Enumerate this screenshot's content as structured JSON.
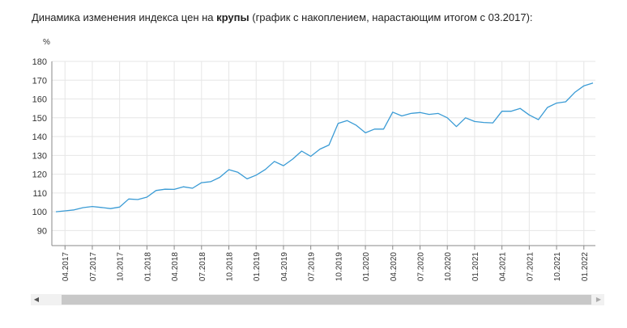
{
  "header": {
    "title_prefix": "Динамика изменения индекса цен на ",
    "title_bold": "крупы",
    "title_suffix": " (график с накоплением, нарастающим итогом с 03.2017):"
  },
  "scrollbar": {
    "left_arrow": "◀",
    "right_arrow": "▶"
  },
  "colors": {
    "line": "#3a9bd5",
    "grid": "#e6e6e6",
    "axis": "#888888"
  },
  "chart_data": {
    "type": "line",
    "title": "Динамика изменения индекса цен на крупы (график с накоплением, нарастающим итогом с 03.2017):",
    "ylabel": "%",
    "ylim": [
      82,
      180
    ],
    "yticks": [
      90,
      100,
      110,
      120,
      130,
      140,
      150,
      160,
      170,
      180
    ],
    "ytick_labels": [
      "90",
      "100",
      "110",
      "120",
      "130",
      "140",
      "150",
      "160",
      "170",
      "180"
    ],
    "grid": true,
    "x_labels": [
      "04.2017",
      "07.2017",
      "10.2017",
      "01.2018",
      "04.2018",
      "07.2018",
      "10.2018",
      "01.2019",
      "04.2019",
      "07.2019",
      "10.2019",
      "01.2020",
      "04.2020",
      "07.2020",
      "10.2020",
      "01.2021",
      "04.2021",
      "07.2021",
      "10.2021",
      "01.2022"
    ],
    "x": [
      "03.2017",
      "04.2017",
      "05.2017",
      "06.2017",
      "07.2017",
      "08.2017",
      "09.2017",
      "10.2017",
      "11.2017",
      "12.2017",
      "01.2018",
      "02.2018",
      "03.2018",
      "04.2018",
      "05.2018",
      "06.2018",
      "07.2018",
      "08.2018",
      "09.2018",
      "10.2018",
      "11.2018",
      "12.2018",
      "01.2019",
      "02.2019",
      "03.2019",
      "04.2019",
      "05.2019",
      "06.2019",
      "07.2019",
      "08.2019",
      "09.2019",
      "10.2019",
      "11.2019",
      "12.2019",
      "01.2020",
      "02.2020",
      "03.2020",
      "04.2020",
      "05.2020",
      "06.2020",
      "07.2020",
      "08.2020",
      "09.2020",
      "10.2020",
      "11.2020",
      "12.2020",
      "01.2021",
      "02.2021",
      "03.2021",
      "04.2021",
      "05.2021",
      "06.2021",
      "07.2021",
      "08.2021",
      "09.2021",
      "10.2021",
      "11.2021",
      "12.2021",
      "01.2022",
      "02.2022"
    ],
    "series": [
      {
        "values": [
          100,
          100.5,
          101,
          102.2,
          102.8,
          102.3,
          101.7,
          102.5,
          106.8,
          106.5,
          107.8,
          111.3,
          112,
          111.9,
          113.3,
          112.5,
          115.5,
          116,
          118.3,
          122.4,
          121,
          117.5,
          119.5,
          122.5,
          126.8,
          124.5,
          128,
          132.3,
          129.5,
          133.3,
          135.5,
          147,
          148.5,
          146,
          142,
          144,
          144,
          153,
          151,
          152.3,
          152.8,
          151.8,
          152.3,
          150,
          145.3,
          150,
          148,
          147.5,
          147.3,
          153.5,
          153.5,
          155,
          151.5,
          149,
          155.5,
          157.8,
          158.5,
          163.5,
          167,
          168.5
        ]
      }
    ]
  }
}
